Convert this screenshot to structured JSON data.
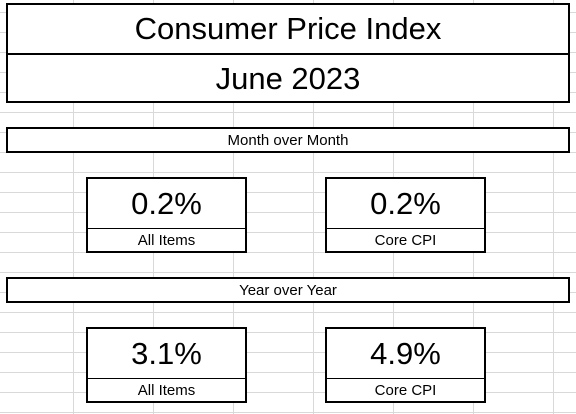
{
  "title": "Consumer Price Index",
  "subtitle": "June 2023",
  "month_over_month": {
    "header": "Month over Month",
    "all_items": {
      "value": "0.2%",
      "label": "All Items"
    },
    "core_cpi": {
      "value": "0.2%",
      "label": "Core CPI"
    }
  },
  "year_over_year": {
    "header": "Year over Year",
    "all_items": {
      "value": "3.1%",
      "label": "All Items"
    },
    "core_cpi": {
      "value": "4.9%",
      "label": "Core CPI"
    }
  }
}
